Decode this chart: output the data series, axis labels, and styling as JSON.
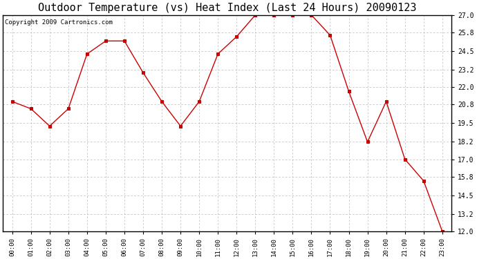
{
  "title": "Outdoor Temperature (vs) Heat Index (Last 24 Hours) 20090123",
  "copyright": "Copyright 2009 Cartronics.com",
  "x_labels": [
    "00:00",
    "01:00",
    "02:00",
    "03:00",
    "04:00",
    "05:00",
    "06:00",
    "07:00",
    "08:00",
    "09:00",
    "10:00",
    "11:00",
    "12:00",
    "13:00",
    "14:00",
    "15:00",
    "16:00",
    "17:00",
    "18:00",
    "19:00",
    "20:00",
    "21:00",
    "22:00",
    "23:00"
  ],
  "y_values": [
    21.0,
    20.5,
    19.3,
    20.5,
    24.3,
    25.2,
    25.2,
    23.0,
    21.0,
    19.3,
    21.0,
    24.3,
    25.5,
    27.0,
    27.0,
    27.0,
    27.0,
    25.6,
    21.7,
    18.2,
    21.0,
    17.0,
    15.5,
    12.0
  ],
  "line_color": "#cc0000",
  "marker": "s",
  "marker_color": "#cc0000",
  "bg_color": "#ffffff",
  "grid_color": "#bbbbbb",
  "ylim_min": 12.0,
  "ylim_max": 27.0,
  "yticks": [
    12.0,
    13.2,
    14.5,
    15.8,
    17.0,
    18.2,
    19.5,
    20.8,
    22.0,
    23.2,
    24.5,
    25.8,
    27.0
  ],
  "title_fontsize": 11,
  "copyright_fontsize": 6.5
}
